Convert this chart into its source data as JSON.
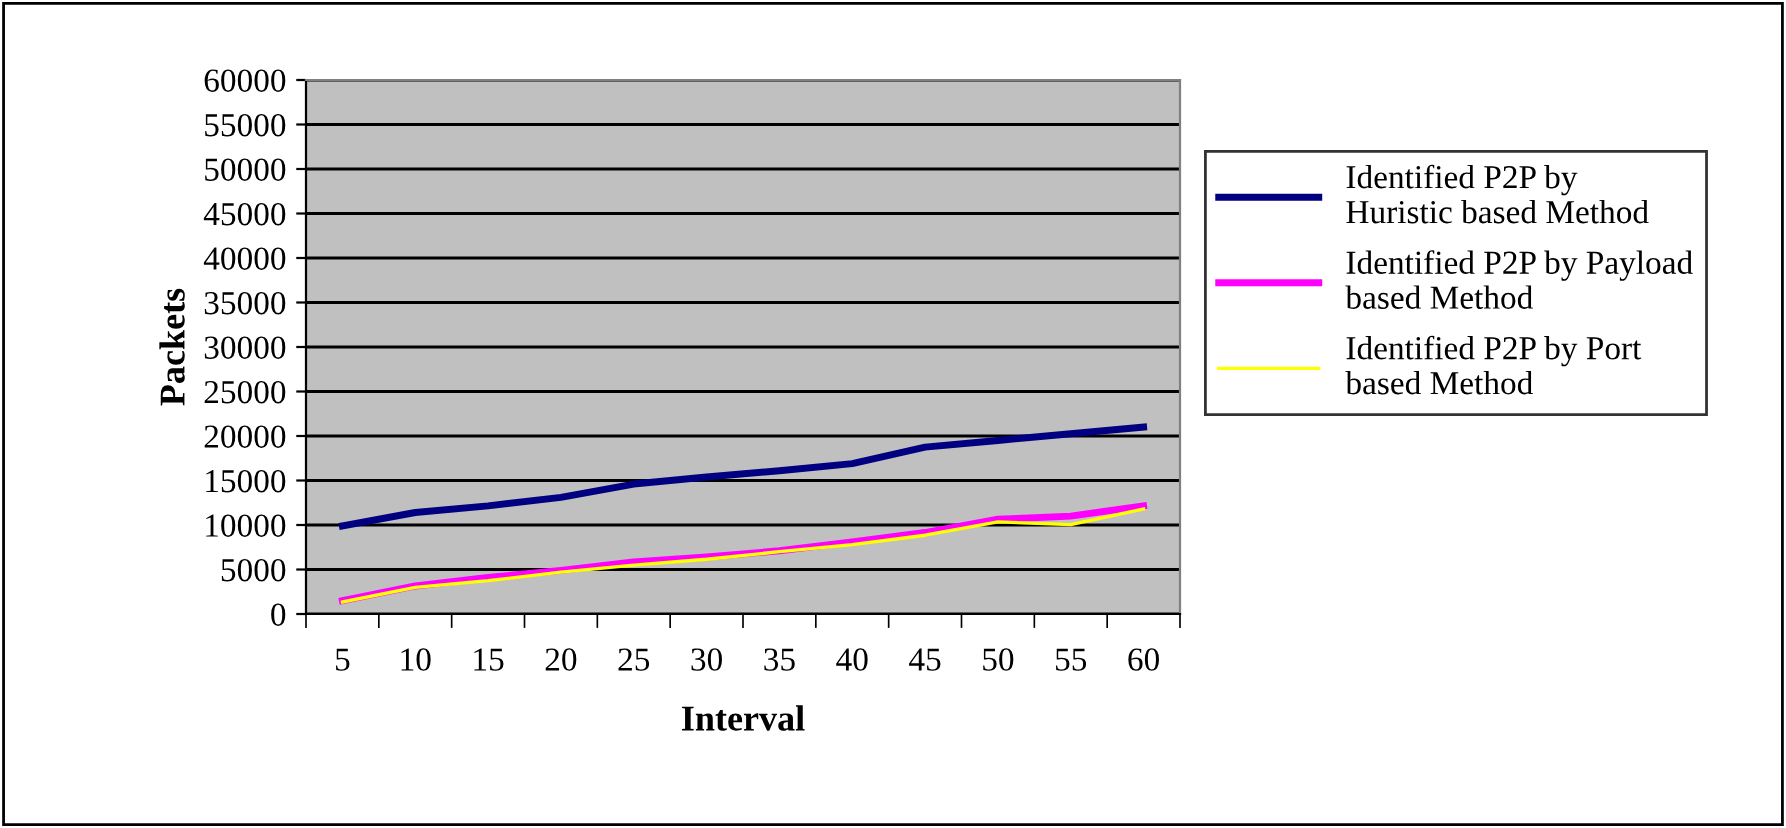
{
  "chart_data": {
    "type": "line",
    "xlabel": "Interval",
    "ylabel": "Packets",
    "categories": [
      "5",
      "10",
      "15",
      "20",
      "25",
      "30",
      "35",
      "40",
      "45",
      "50",
      "55",
      "60"
    ],
    "series": [
      {
        "name": "Identified P2P by Huristic based Method",
        "color": "#000080",
        "values": [
          9900,
          11400,
          12150,
          13100,
          14600,
          15400,
          16100,
          16900,
          18750,
          19500,
          20250,
          21000
        ]
      },
      {
        "name": "Identified P2P by Payload based Method",
        "color": "#ff00ff",
        "values": [
          1500,
          3150,
          4100,
          4900,
          5850,
          6400,
          7100,
          8100,
          9150,
          10650,
          11000,
          12150
        ]
      },
      {
        "name": "Identified P2P by Port based Method",
        "color": "#ffff00",
        "values": [
          1350,
          3000,
          3750,
          4700,
          5500,
          6150,
          7000,
          7800,
          8850,
          10350,
          10050,
          11800
        ]
      }
    ],
    "ylim": [
      0,
      60000
    ],
    "yticks": [
      0,
      5000,
      10000,
      15000,
      20000,
      25000,
      30000,
      35000,
      40000,
      45000,
      50000,
      55000,
      60000
    ],
    "grid": "y",
    "legend": "right",
    "marker": "none",
    "line_style": "solid"
  }
}
